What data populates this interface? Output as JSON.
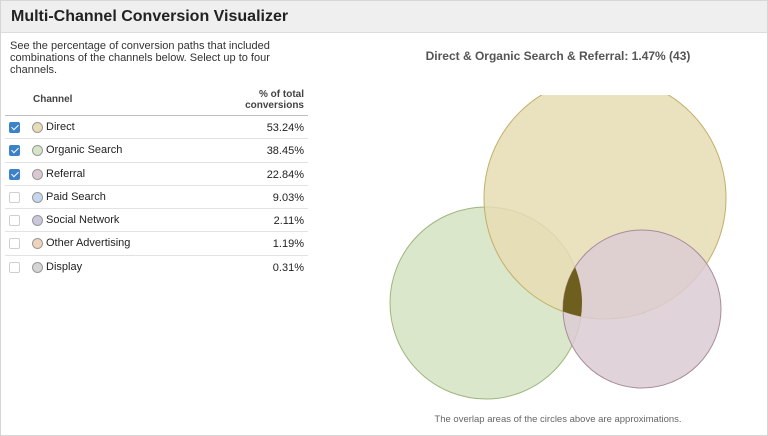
{
  "header": {
    "title": "Multi-Channel Conversion Visualizer"
  },
  "intro": "See the percentage of conversion paths that included combinations of the channels below. Select up to four channels.",
  "table": {
    "header_channel": "Channel",
    "header_pct_line1": "% of total",
    "header_pct_line2": "conversions",
    "rows": [
      {
        "label": "Direct",
        "value": "53.24%",
        "checked": true,
        "color": "#e7dcb4"
      },
      {
        "label": "Organic Search",
        "value": "38.45%",
        "checked": true,
        "color": "#d6e5c6"
      },
      {
        "label": "Referral",
        "value": "22.84%",
        "checked": true,
        "color": "#dcc8d2"
      },
      {
        "label": "Paid Search",
        "value": "9.03%",
        "checked": false,
        "color": "#c5d6ee"
      },
      {
        "label": "Social Network",
        "value": "2.11%",
        "checked": false,
        "color": "#c9c8dc"
      },
      {
        "label": "Other Advertising",
        "value": "1.19%",
        "checked": false,
        "color": "#f1d2bb"
      },
      {
        "label": "Display",
        "value": "0.31%",
        "checked": false,
        "color": "#d5d5d5"
      }
    ]
  },
  "chart": {
    "title": "Direct & Organic Search & Referral: 1.47% (43)",
    "footnote": "The overlap areas of the circles above are approximations.",
    "colors": {
      "direct": "#e6dcb4",
      "organic": "#d3e3c2",
      "referral": "#dccbd4",
      "intersection": "#6e5f1e"
    }
  }
}
